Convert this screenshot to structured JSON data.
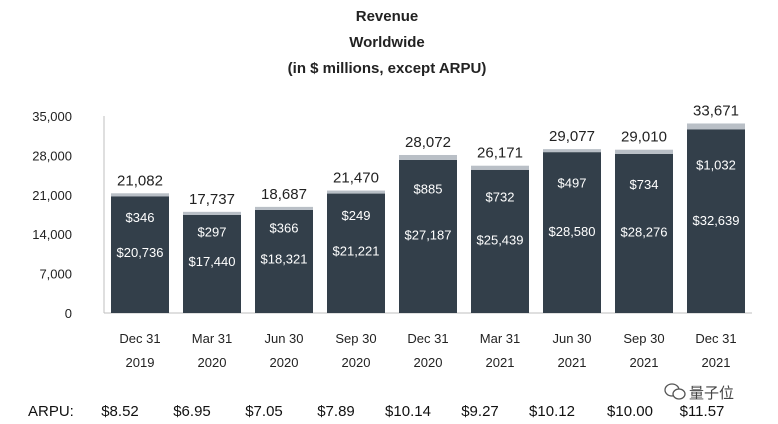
{
  "chart_data": {
    "type": "bar",
    "title_lines": [
      "Revenue",
      "Worldwide",
      "(in $ millions, except ARPU)"
    ],
    "categories": [
      [
        "Dec 31",
        "2019"
      ],
      [
        "Mar 31",
        "2020"
      ],
      [
        "Jun 30",
        "2020"
      ],
      [
        "Sep 30",
        "2020"
      ],
      [
        "Dec 31",
        "2020"
      ],
      [
        "Mar 31",
        "2021"
      ],
      [
        "Jun 30",
        "2021"
      ],
      [
        "Sep 30",
        "2021"
      ],
      [
        "Dec 31",
        "2021"
      ]
    ],
    "series": [
      {
        "values": [
          20736,
          17440,
          18321,
          21221,
          27187,
          25439,
          28580,
          28276,
          32639
        ],
        "labels": [
          "$20,736",
          "$17,440",
          "$18,321",
          "$21,221",
          "$27,187",
          "$25,439",
          "$28,580",
          "$28,276",
          "$32,639"
        ],
        "color": "#333f4a"
      },
      {
        "values": [
          346,
          297,
          366,
          249,
          885,
          732,
          497,
          734,
          1032
        ],
        "labels": [
          "$346",
          "$297",
          "$366",
          "$249",
          "$885",
          "$732",
          "$497",
          "$734",
          "$1,032"
        ],
        "color": "#b9bfc6"
      }
    ],
    "totals": [
      "21,082",
      "17,737",
      "18,687",
      "21,470",
      "28,072",
      "26,171",
      "29,077",
      "29,010",
      "33,671"
    ],
    "total_values": [
      21082,
      17737,
      18687,
      21470,
      28072,
      26171,
      29077,
      29010,
      33671
    ],
    "y_ticks": [
      "0",
      "7,000",
      "14,000",
      "21,000",
      "28,000",
      "35,000"
    ],
    "y_tick_values": [
      0,
      7000,
      14000,
      21000,
      28000,
      35000
    ],
    "ylim": [
      0,
      35000
    ],
    "grid": false,
    "arpu_label": "ARPU:",
    "arpu": [
      "$8.52",
      "$6.95",
      "$7.05",
      "$7.89",
      "$10.14",
      "$9.27",
      "$10.12",
      "$10.00",
      "$11.57"
    ]
  },
  "watermark": "量子位"
}
